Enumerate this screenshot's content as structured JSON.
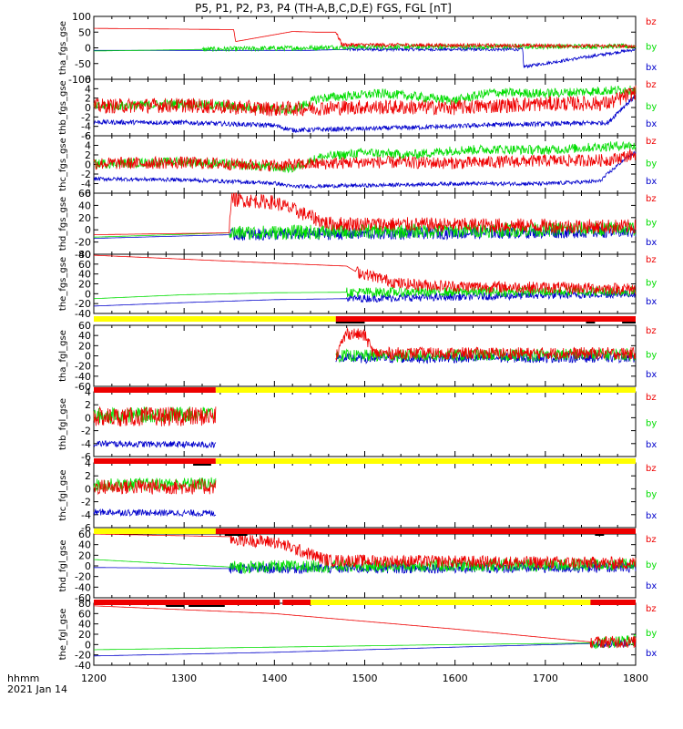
{
  "title": "P5, P1, P2, P3, P4 (TH-A,B,C,D,E) FGS, FGL [nT]",
  "footer": {
    "line1": "hhmm",
    "line2": "2021 Jan 14"
  },
  "colors": {
    "bx": "#0000cc",
    "by": "#00dd00",
    "bz": "#ee0000",
    "bar_yellow": "#ffff00",
    "bar_red": "#ee0000",
    "bar_black": "#000000"
  },
  "chart_data": {
    "type": "line",
    "xlim": [
      1200,
      1800
    ],
    "x_tick_labels": [
      "1200",
      "1300",
      "1400",
      "1500",
      "1600",
      "1700",
      "1800"
    ],
    "legend_placement": "right",
    "series_names": [
      "bz",
      "by",
      "bx"
    ],
    "panels": [
      {
        "ylabel": "tha_fgs_gse",
        "ylim": [
          -100,
          100
        ],
        "ticks": [
          100,
          50,
          0,
          -50,
          -100
        ],
        "series": [
          {
            "name": "bz",
            "x": [
              1200,
              1355,
              1357,
              1420,
              1445,
              1468,
              1475,
              1800
            ],
            "y": [
              62,
              58,
              20,
              52,
              50,
              50,
              10,
              5
            ],
            "noise": 6,
            "noise_from": 1468
          },
          {
            "name": "by",
            "x": [
              1200,
              1320,
              1440,
              1480,
              1800
            ],
            "y": [
              -10,
              -5,
              0,
              3,
              5
            ],
            "noise": 8,
            "noise_from": 1320
          },
          {
            "name": "bx",
            "x": [
              1200,
              1440,
              1480,
              1675,
              1676,
              1800
            ],
            "y": [
              -8,
              -8,
              -5,
              -5,
              -60,
              -5
            ],
            "noise": 5,
            "noise_from": 1480
          }
        ]
      },
      {
        "ylabel": "thb_fgs_gse",
        "ylim": [
          -6,
          6
        ],
        "ticks": [
          6,
          4,
          2,
          0,
          -2,
          -4,
          -6
        ],
        "series": [
          {
            "name": "bz",
            "x": [
              1200,
              1300,
              1400,
              1500,
              1600,
              1700,
              1770,
              1800
            ],
            "y": [
              0.3,
              0.5,
              -0.3,
              0.1,
              0,
              0.8,
              0.9,
              3.3
            ],
            "noise": 1.6,
            "noise_from": 1200
          },
          {
            "name": "by",
            "x": [
              1200,
              1300,
              1420,
              1450,
              1520,
              1600,
              1640,
              1700,
              1790,
              1800
            ],
            "y": [
              0.2,
              0.8,
              -0.5,
              2.0,
              3.0,
              1.5,
              3.2,
              3.0,
              3.8,
              3.5
            ],
            "noise": 1.0,
            "noise_from": 1200
          },
          {
            "name": "bx",
            "x": [
              1200,
              1300,
              1400,
              1420,
              1500,
              1600,
              1650,
              1700,
              1770,
              1780,
              1800
            ],
            "y": [
              -3.1,
              -3.2,
              -3.8,
              -4.8,
              -4.5,
              -4.0,
              -3.6,
              -3.5,
              -3.2,
              -1.0,
              2.5
            ],
            "noise": 0.5,
            "noise_from": 1200
          }
        ]
      },
      {
        "ylabel": "thc_fgs_gse",
        "ylim": [
          -6,
          6
        ],
        "ticks": [
          6,
          4,
          2,
          0,
          -2,
          -4,
          -6
        ],
        "series": [
          {
            "name": "bz",
            "x": [
              1200,
              1300,
              1400,
              1500,
              1600,
              1700,
              1770,
              1800
            ],
            "y": [
              0.2,
              0.4,
              -0.2,
              0.5,
              0.3,
              0.8,
              0.9,
              2.2
            ],
            "noise": 1.3,
            "noise_from": 1200
          },
          {
            "name": "by",
            "x": [
              1200,
              1300,
              1420,
              1450,
              1500,
              1550,
              1600,
              1650,
              1700,
              1790,
              1800
            ],
            "y": [
              0.1,
              0.6,
              -0.8,
              1.5,
              2.5,
              2.0,
              3.0,
              3.2,
              3.0,
              4.0,
              3.8
            ],
            "noise": 1.0,
            "noise_from": 1200
          },
          {
            "name": "bx",
            "x": [
              1200,
              1300,
              1400,
              1420,
              1500,
              1600,
              1700,
              1760,
              1790,
              1800
            ],
            "y": [
              -3.0,
              -3.2,
              -3.9,
              -4.6,
              -4.4,
              -4.0,
              -4.0,
              -3.5,
              1.5,
              2.5
            ],
            "noise": 0.4,
            "noise_from": 1200
          }
        ]
      },
      {
        "ylabel": "thd_fgs_gse",
        "ylim": [
          -40,
          60
        ],
        "ticks": [
          60,
          40,
          20,
          0,
          -20,
          -40
        ],
        "series": [
          {
            "name": "bz",
            "x": [
              1200,
              1350,
              1352,
              1400,
              1460,
              1800
            ],
            "y": [
              -8,
              -5,
              50,
              45,
              10,
              5
            ],
            "noise": 12,
            "noise_from": 1350
          },
          {
            "name": "by",
            "x": [
              1200,
              1350,
              1800
            ],
            "y": [
              -12,
              -5,
              2
            ],
            "noise": 12,
            "noise_from": 1350
          },
          {
            "name": "bx",
            "x": [
              1200,
              1350,
              1800
            ],
            "y": [
              -14,
              -8,
              -3
            ],
            "noise": 10,
            "noise_from": 1350
          }
        ]
      },
      {
        "ylabel": "the_fgs_gse",
        "ylim": [
          -40,
          80
        ],
        "ticks": [
          80,
          60,
          40,
          20,
          0,
          -20,
          -40
        ],
        "series": [
          {
            "name": "bz",
            "x": [
              1200,
              1300,
              1400,
              1480,
              1490,
              1540,
              1600,
              1800
            ],
            "y": [
              78,
              70,
              62,
              56,
              45,
              20,
              15,
              10
            ],
            "noise": 12,
            "noise_from": 1490
          },
          {
            "name": "by",
            "x": [
              1200,
              1300,
              1400,
              1480,
              1800
            ],
            "y": [
              -10,
              -2,
              2,
              3,
              5
            ],
            "noise": 10,
            "noise_from": 1480
          },
          {
            "name": "bx",
            "x": [
              1200,
              1300,
              1400,
              1480,
              1800
            ],
            "y": [
              -25,
              -18,
              -12,
              -10,
              0
            ],
            "noise": 8,
            "noise_from": 1480
          }
        ]
      },
      {
        "ylabel": "tha_fgl_gse",
        "ylim": [
          -60,
          60
        ],
        "ticks": [
          60,
          40,
          20,
          0,
          -20,
          -40,
          -60
        ],
        "data_from": 1468,
        "series": [
          {
            "name": "bz",
            "x": [
              1468,
              1480,
              1500,
              1510,
              1800
            ],
            "y": [
              0,
              45,
              40,
              5,
              5
            ],
            "noise": 12,
            "noise_from": 1468
          },
          {
            "name": "by",
            "x": [
              1468,
              1800
            ],
            "y": [
              0,
              3
            ],
            "noise": 12,
            "noise_from": 1468
          },
          {
            "name": "bx",
            "x": [
              1468,
              1800
            ],
            "y": [
              -5,
              -3
            ],
            "noise": 10,
            "noise_from": 1468
          }
        ]
      },
      {
        "ylabel": "thb_fgl_gse",
        "ylim": [
          -6,
          4
        ],
        "ticks": [
          4,
          2,
          0,
          -2,
          -4,
          -6
        ],
        "data_to": 1335,
        "series": [
          {
            "name": "bz",
            "x": [
              1200,
              1335
            ],
            "y": [
              0.1,
              0.2
            ],
            "noise": 1.5,
            "noise_from": 1200
          },
          {
            "name": "by",
            "x": [
              1200,
              1335
            ],
            "y": [
              0.3,
              0.6
            ],
            "noise": 1.2,
            "noise_from": 1200
          },
          {
            "name": "bx",
            "x": [
              1200,
              1335
            ],
            "y": [
              -4.0,
              -4.2
            ],
            "noise": 0.5,
            "noise_from": 1200
          }
        ]
      },
      {
        "ylabel": "thc_fgl_gse",
        "ylim": [
          -6,
          4
        ],
        "ticks": [
          4,
          2,
          0,
          -2,
          -4,
          -6
        ],
        "data_to": 1335,
        "series": [
          {
            "name": "bz",
            "x": [
              1200,
              1335
            ],
            "y": [
              0.3,
              0.3
            ],
            "noise": 1.2,
            "noise_from": 1200
          },
          {
            "name": "by",
            "x": [
              1200,
              1335
            ],
            "y": [
              0.6,
              0.8
            ],
            "noise": 1.0,
            "noise_from": 1200
          },
          {
            "name": "bx",
            "x": [
              1200,
              1335
            ],
            "y": [
              -3.6,
              -3.8
            ],
            "noise": 0.5,
            "noise_from": 1200
          }
        ]
      },
      {
        "ylabel": "thd_fgl_gse",
        "ylim": [
          -60,
          60
        ],
        "ticks": [
          60,
          40,
          20,
          0,
          -20,
          -40,
          -60
        ],
        "series": [
          {
            "name": "bz",
            "x": [
              1200,
              1350,
              1352,
              1400,
              1460,
              1800
            ],
            "y": [
              60,
              55,
              50,
              45,
              10,
              5
            ],
            "noise": 12,
            "noise_from": 1350
          },
          {
            "name": "by",
            "x": [
              1200,
              1350,
              1800
            ],
            "y": [
              12,
              -2,
              3
            ],
            "noise": 12,
            "noise_from": 1350
          },
          {
            "name": "bx",
            "x": [
              1200,
              1350,
              1800
            ],
            "y": [
              -3,
              -5,
              -3
            ],
            "noise": 10,
            "noise_from": 1350
          }
        ]
      },
      {
        "ylabel": "the_fgl_gse",
        "ylim": [
          -40,
          80
        ],
        "ticks": [
          80,
          60,
          40,
          20,
          0,
          -20,
          -40
        ],
        "series": [
          {
            "name": "bz",
            "x": [
              1200,
              1400,
              1600,
              1750,
              1800
            ],
            "y": [
              75,
              60,
              30,
              5,
              5
            ],
            "noise": 12,
            "noise_from": 1750
          },
          {
            "name": "by",
            "x": [
              1200,
              1400,
              1600,
              1750,
              1800
            ],
            "y": [
              -10,
              -5,
              0,
              3,
              8
            ],
            "noise": 12,
            "noise_from": 1750
          },
          {
            "name": "bx",
            "x": [
              1200,
              1400,
              1600,
              1750,
              1800
            ],
            "y": [
              -22,
              -15,
              -5,
              2,
              3
            ],
            "noise": 8,
            "noise_from": 1750
          }
        ]
      }
    ],
    "mode_bars": [
      {
        "after_panel": 4,
        "segments": [
          {
            "x0": 1200,
            "x1": 1468,
            "color": "yellow"
          },
          {
            "x0": 1468,
            "x1": 1800,
            "color": "red"
          }
        ],
        "marks": [
          [
            1468,
            1500
          ],
          [
            1745,
            1755
          ],
          [
            1785,
            1800
          ]
        ]
      },
      {
        "after_panel": 5,
        "segments": [
          {
            "x0": 1200,
            "x1": 1335,
            "color": "red"
          },
          {
            "x0": 1335,
            "x1": 1800,
            "color": "yellow"
          }
        ],
        "marks": []
      },
      {
        "after_panel": 6,
        "segments": [
          {
            "x0": 1200,
            "x1": 1335,
            "color": "red"
          },
          {
            "x0": 1335,
            "x1": 1800,
            "color": "yellow"
          }
        ],
        "marks": [
          [
            1310,
            1330
          ]
        ]
      },
      {
        "after_panel": 7,
        "segments": [
          {
            "x0": 1200,
            "x1": 1335,
            "color": "yellow"
          },
          {
            "x0": 1335,
            "x1": 1800,
            "color": "red"
          }
        ],
        "marks": [
          [
            1345,
            1370
          ],
          [
            1755,
            1765
          ]
        ]
      },
      {
        "after_panel": 8,
        "segments": [
          {
            "x0": 1200,
            "x1": 1406,
            "color": "red"
          },
          {
            "x0": 1409,
            "x1": 1440,
            "color": "red"
          },
          {
            "x0": 1440,
            "x1": 1750,
            "color": "yellow"
          },
          {
            "x0": 1750,
            "x1": 1800,
            "color": "red"
          }
        ],
        "marks": [
          [
            1280,
            1300
          ],
          [
            1305,
            1345
          ]
        ]
      }
    ]
  }
}
